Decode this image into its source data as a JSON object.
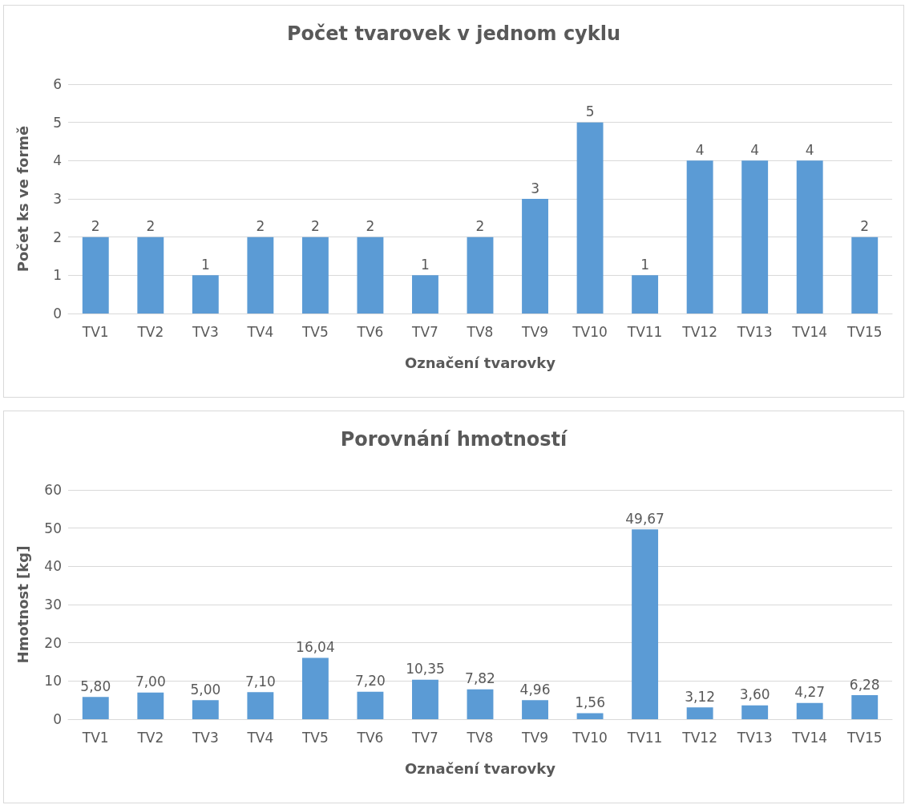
{
  "chart_data": [
    {
      "type": "bar",
      "title": "Počet tvarovek v jednom cyklu",
      "xlabel": "Označení tvarovky",
      "ylabel": "Počet ks ve formě",
      "categories": [
        "TV1",
        "TV2",
        "TV3",
        "TV4",
        "TV5",
        "TV6",
        "TV7",
        "TV8",
        "TV9",
        "TV10",
        "TV11",
        "TV12",
        "TV13",
        "TV14",
        "TV15"
      ],
      "values": [
        2,
        2,
        1,
        2,
        2,
        2,
        1,
        2,
        3,
        5,
        1,
        4,
        4,
        4,
        2
      ],
      "color": "#5b9bd5",
      "ylim": [
        0,
        6
      ],
      "yticks": [
        0,
        1,
        2,
        3,
        4,
        5,
        6
      ],
      "grid": "y",
      "data_labels": true
    },
    {
      "type": "bar",
      "title": "Porovnání hmotností",
      "xlabel": "Označení tvarovky",
      "ylabel": "Hmotnost [kg]",
      "categories": [
        "TV1",
        "TV2",
        "TV3",
        "TV4",
        "TV5",
        "TV6",
        "TV7",
        "TV8",
        "TV9",
        "TV10",
        "TV11",
        "TV12",
        "TV13",
        "TV14",
        "TV15"
      ],
      "values": [
        5.8,
        7.0,
        5.0,
        7.1,
        16.04,
        7.2,
        10.35,
        7.82,
        4.96,
        1.56,
        49.67,
        3.12,
        3.6,
        4.27,
        6.28
      ],
      "value_labels": [
        "5,80",
        "7,00",
        "5,00",
        "7,10",
        "16,04",
        "7,20",
        "10,35",
        "7,82",
        "4,96",
        "1,56",
        "49,67",
        "3,12",
        "3,60",
        "4,27",
        "6,28"
      ],
      "color": "#5b9bd5",
      "ylim": [
        0,
        60
      ],
      "yticks": [
        0,
        10,
        20,
        30,
        40,
        50,
        60
      ],
      "grid": "y"
    }
  ]
}
